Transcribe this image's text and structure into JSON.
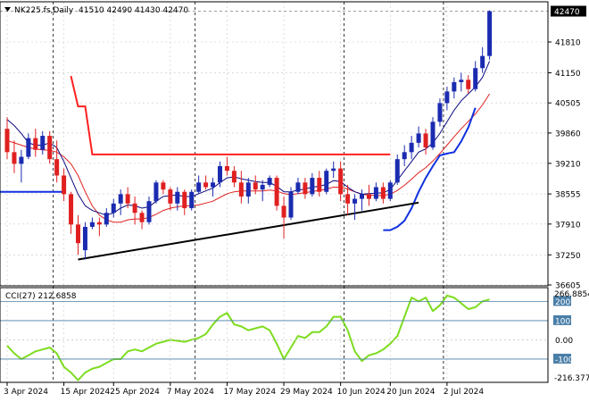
{
  "chart_data": [
    {
      "type": "candlestick",
      "title": "NK225.fs,Daily",
      "ohlc_header": "41510 42490 41430 42470",
      "last_price_label": "42470",
      "y_ticks": [
        "42470",
        "41810",
        "41150",
        "40505",
        "39860",
        "39210",
        "38555",
        "37910",
        "37250",
        "36605"
      ],
      "ylim": [
        36605,
        42690
      ],
      "x_tick_labels": [
        "3 Apr 2024",
        "15 Apr 2024",
        "25 Apr 2024",
        "7 May 2024",
        "17 May 2024",
        "29 May 2024",
        "10 Jun 2024",
        "20 Jun 2024",
        "2 Jul 2024"
      ],
      "x_tick_index": [
        0,
        8,
        15,
        23,
        31,
        39,
        47,
        54,
        62
      ],
      "vertical_separators_index": [
        6.5,
        26.5,
        47.5,
        61.5
      ],
      "bar_count": 69,
      "colors": {
        "bull": "#1b2bb0",
        "bear": "#e02020",
        "fast_ma": "#0a0a80",
        "slow_ma": "#e02020",
        "long_ma": "#1030e0",
        "trendline": "#000000",
        "stop_line": "#ff2020"
      },
      "candles": [
        [
          39950,
          40200,
          39300,
          39450
        ],
        [
          39450,
          39700,
          39000,
          39200
        ],
        [
          39200,
          39500,
          38800,
          39350
        ],
        [
          39350,
          39850,
          39300,
          39750
        ],
        [
          39750,
          39950,
          39350,
          39500
        ],
        [
          39500,
          39900,
          39400,
          39800
        ],
        [
          39800,
          39900,
          39200,
          39300
        ],
        [
          39300,
          39700,
          38800,
          38950
        ],
        [
          38950,
          39100,
          38400,
          38550
        ],
        [
          38550,
          38600,
          37700,
          37900
        ],
        [
          37900,
          38100,
          37250,
          37500
        ],
        [
          37350,
          37950,
          37150,
          37850
        ],
        [
          37850,
          38050,
          37800,
          37950
        ],
        [
          37950,
          38050,
          37650,
          37900
        ],
        [
          37900,
          38250,
          37850,
          38150
        ],
        [
          38150,
          38450,
          38050,
          38350
        ],
        [
          38350,
          38650,
          38100,
          38550
        ],
        [
          38550,
          38700,
          38250,
          38350
        ],
        [
          38350,
          38500,
          37900,
          38150
        ],
        [
          38150,
          38200,
          37800,
          37950
        ],
        [
          37950,
          38500,
          37900,
          38400
        ],
        [
          38400,
          38850,
          38350,
          38800
        ],
        [
          38800,
          38850,
          38550,
          38650
        ],
        [
          38650,
          38700,
          38200,
          38350
        ],
        [
          38350,
          38700,
          38200,
          38600
        ],
        [
          38600,
          38650,
          38100,
          38250
        ],
        [
          38250,
          38650,
          38200,
          38600
        ],
        [
          38600,
          38950,
          38550,
          38800
        ],
        [
          38800,
          38950,
          38650,
          38700
        ],
        [
          38700,
          38900,
          38500,
          38800
        ],
        [
          38800,
          39250,
          38700,
          39150
        ],
        [
          39150,
          39350,
          38950,
          39050
        ],
        [
          39050,
          39150,
          38700,
          38800
        ],
        [
          38800,
          39050,
          38350,
          38500
        ],
        [
          38500,
          38900,
          38350,
          38800
        ],
        [
          38800,
          38950,
          38550,
          38650
        ],
        [
          38650,
          38850,
          38400,
          38750
        ],
        [
          38750,
          38950,
          38700,
          38900
        ],
        [
          38900,
          38950,
          38200,
          38300
        ],
        [
          38300,
          38500,
          37600,
          38050
        ],
        [
          38050,
          38700,
          38000,
          38600
        ],
        [
          38600,
          38900,
          38550,
          38800
        ],
        [
          38800,
          38900,
          38450,
          38550
        ],
        [
          38550,
          39000,
          38500,
          38900
        ],
        [
          38900,
          39050,
          38500,
          38600
        ],
        [
          38600,
          39100,
          38550,
          39050
        ],
        [
          39050,
          39250,
          38900,
          39100
        ],
        [
          39100,
          39250,
          38400,
          38550
        ],
        [
          38550,
          38750,
          38100,
          38350
        ],
        [
          38350,
          38550,
          38000,
          38450
        ],
        [
          38450,
          38650,
          38200,
          38550
        ],
        [
          38550,
          38750,
          38300,
          38450
        ],
        [
          38450,
          38800,
          38400,
          38700
        ],
        [
          38700,
          38800,
          38350,
          38450
        ],
        [
          38450,
          38850,
          38400,
          38800
        ],
        [
          38800,
          39400,
          38750,
          39300
        ],
        [
          39300,
          39600,
          39150,
          39450
        ],
        [
          39450,
          39800,
          39300,
          39650
        ],
        [
          39650,
          40000,
          39550,
          39850
        ],
        [
          39850,
          39950,
          39400,
          39550
        ],
        [
          39550,
          40200,
          39500,
          40100
        ],
        [
          40100,
          40600,
          40000,
          40500
        ],
        [
          40500,
          40850,
          40350,
          40750
        ],
        [
          40750,
          41050,
          40600,
          40950
        ],
        [
          40950,
          41150,
          40750,
          41000
        ],
        [
          41000,
          41100,
          40700,
          40800
        ],
        [
          40800,
          41400,
          40750,
          41250
        ],
        [
          41250,
          41700,
          41150,
          41510
        ],
        [
          41510,
          42490,
          41430,
          42470
        ]
      ],
      "fast_ma": [
        40150,
        40020,
        39850,
        39650,
        39600,
        39600,
        39650,
        39550,
        39250,
        38900,
        38550,
        38300,
        38200,
        38150,
        38100,
        38150,
        38250,
        38320,
        38300,
        38250,
        38280,
        38400,
        38500,
        38520,
        38530,
        38500,
        38500,
        38560,
        38620,
        38680,
        38800,
        38900,
        38920,
        38880,
        38850,
        38820,
        38800,
        38800,
        38720,
        38600,
        38600,
        38640,
        38660,
        38700,
        38720,
        38760,
        38840,
        38820,
        38700,
        38600,
        38550,
        38560,
        38570,
        38580,
        38650,
        38850,
        39050,
        39250,
        39450,
        39520,
        39650,
        39850,
        40100,
        40350,
        40550,
        40700,
        40850,
        41050,
        41400
      ],
      "slow_ma": [
        39700,
        39650,
        39600,
        39550,
        39520,
        39500,
        39490,
        39450,
        39350,
        39200,
        38950,
        38600,
        38300,
        38100,
        38000,
        37950,
        37950,
        38000,
        38020,
        38020,
        38050,
        38120,
        38200,
        38250,
        38280,
        38300,
        38300,
        38320,
        38360,
        38400,
        38480,
        38560,
        38600,
        38620,
        38620,
        38620,
        38620,
        38640,
        38620,
        38560,
        38540,
        38560,
        38580,
        38610,
        38630,
        38660,
        38700,
        38700,
        38660,
        38600,
        38550,
        38530,
        38520,
        38520,
        38550,
        38630,
        38740,
        38870,
        39010,
        39120,
        39260,
        39420,
        39600,
        39780,
        39950,
        40110,
        40270,
        40460,
        40700
      ],
      "long_ma_start_index": 53,
      "long_ma": [
        37780,
        37780,
        37850,
        37980,
        38250,
        38600,
        38900,
        39150,
        39380,
        39420,
        39450,
        39680,
        39980,
        40400
      ],
      "flat_line": {
        "start_index": 0,
        "end_index": 8,
        "value": 38600
      },
      "stop_line": [
        [
          9,
          41080
        ],
        [
          10,
          40430
        ],
        [
          11,
          40430
        ],
        [
          12,
          39400
        ],
        [
          54,
          39400
        ]
      ],
      "trendline": [
        [
          10,
          37150
        ],
        [
          58,
          38370
        ]
      ]
    },
    {
      "type": "line",
      "indicator": "CCI(27) 212.6858",
      "top_label": "266.8854",
      "bottom_label": "-216.377",
      "levels": [
        "200",
        "100",
        "0.00",
        "-100"
      ],
      "ylim": [
        -216.377,
        266.8854
      ],
      "values": [
        -30,
        -70,
        -100,
        -80,
        -60,
        -50,
        -40,
        -70,
        -140,
        -170,
        -210,
        -170,
        -150,
        -140,
        -120,
        -100,
        -100,
        -60,
        -50,
        -60,
        -40,
        -20,
        -10,
        0,
        -5,
        -10,
        0,
        10,
        30,
        80,
        120,
        140,
        80,
        70,
        50,
        60,
        70,
        50,
        -20,
        -100,
        -40,
        20,
        10,
        40,
        40,
        70,
        120,
        120,
        50,
        -60,
        -110,
        -80,
        -70,
        -50,
        -20,
        20,
        120,
        220,
        200,
        220,
        150,
        180,
        230,
        220,
        190,
        160,
        170,
        200,
        210
      ]
    }
  ]
}
